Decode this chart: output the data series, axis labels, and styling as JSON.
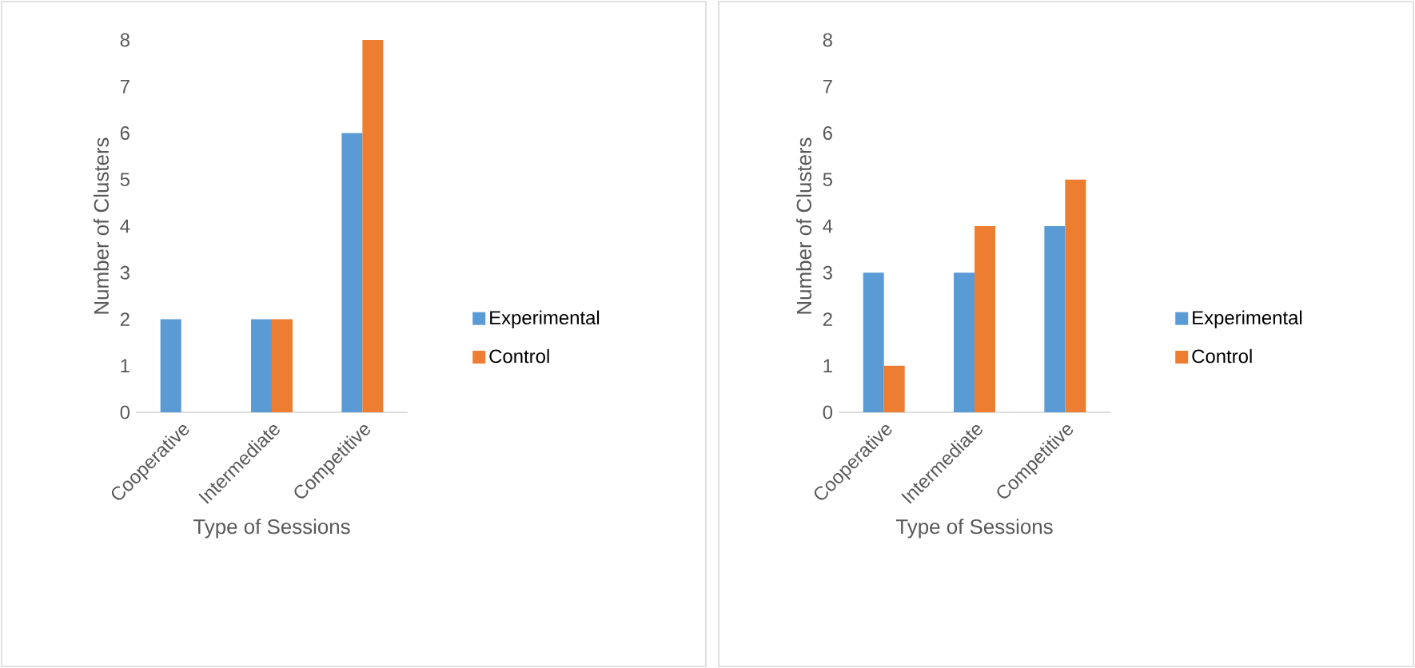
{
  "chart_data": [
    {
      "type": "bar",
      "xlabel": "Type of Sessions",
      "ylabel": "Number of Clusters",
      "categories": [
        "Cooperative",
        "Intermediate",
        "Competitive"
      ],
      "series": [
        {
          "name": "Experimental",
          "color": "#5b9bd5",
          "values": [
            2,
            2,
            6
          ]
        },
        {
          "name": "Control",
          "color": "#ed7d31",
          "values": [
            0,
            2,
            8
          ]
        }
      ],
      "ylim": [
        0,
        8
      ],
      "yticks": [
        0,
        1,
        2,
        3,
        4,
        5,
        6,
        7,
        8
      ],
      "legend": "right"
    },
    {
      "type": "bar",
      "xlabel": "Type of Sessions",
      "ylabel": "Number of Clusters",
      "categories": [
        "Cooperative",
        "Intermediate",
        "Competitive"
      ],
      "series": [
        {
          "name": "Experimental",
          "color": "#5b9bd5",
          "values": [
            3,
            3,
            4
          ]
        },
        {
          "name": "Control",
          "color": "#ed7d31",
          "values": [
            1,
            4,
            5
          ]
        }
      ],
      "ylim": [
        0,
        8
      ],
      "yticks": [
        0,
        1,
        2,
        3,
        4,
        5,
        6,
        7,
        8
      ],
      "legend": "right"
    }
  ]
}
